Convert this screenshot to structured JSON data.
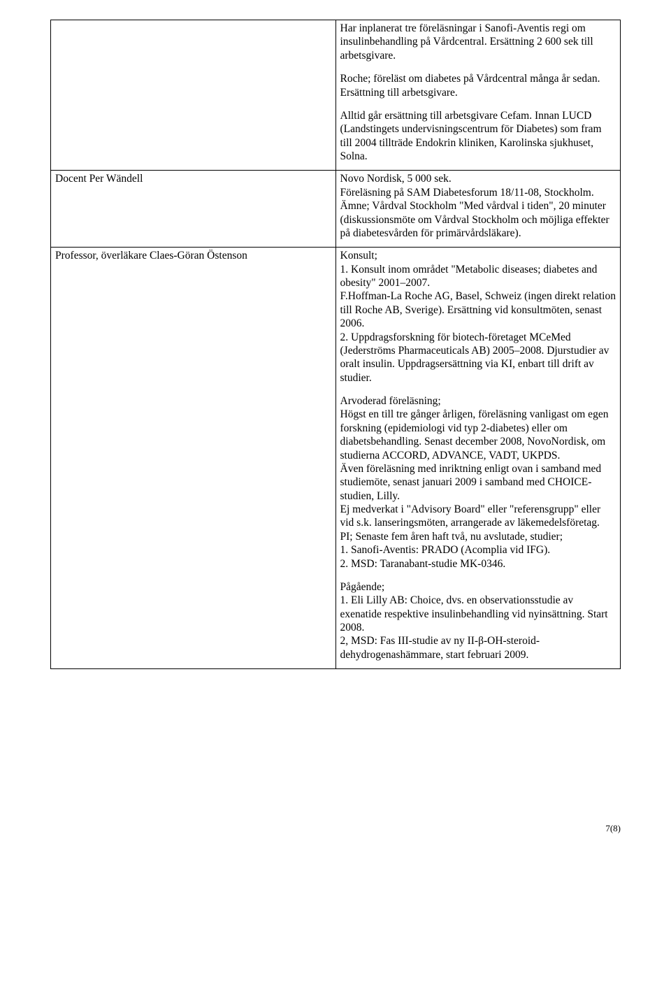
{
  "rows": [
    {
      "left": "",
      "right": [
        "Har inplanerat tre föreläsningar i Sanofi-Aventis regi om insulinbehandling på Vårdcentral. Ersättning 2 600 sek till arbetsgivare.",
        "Roche; föreläst om diabetes på Vårdcentral många år sedan. Ersättning till arbetsgivare.",
        "Alltid går ersättning till arbetsgivare Cefam. Innan LUCD (Landstingets undervisningscentrum för Diabetes) som fram till 2004 tillträde Endokrin kliniken, Karolinska sjukhuset, Solna."
      ]
    },
    {
      "left": "Docent Per Wändell",
      "right": [
        "Novo Nordisk, 5 000 sek.\nFöreläsning på SAM Diabetesforum 18/11-08, Stockholm. Ämne; Vårdval Stockholm \"Med vårdval i tiden\", 20 minuter (diskussionsmöte om Vårdval Stockholm och möjliga effekter på diabetesvården för primärvårdsläkare)."
      ]
    },
    {
      "left": "Professor, överläkare Claes-Göran Östenson",
      "right": [
        "Konsult;\n1. Konsult inom området \"Metabolic diseases; diabetes and obesity\" 2001–2007.\nF.Hoffman-La Roche AG, Basel, Schweiz (ingen direkt relation till Roche AB, Sverige). Ersättning vid konsultmöten, senast 2006.\n2. Uppdragsforskning för biotech-företaget MCeMed (Jederströms Pharmaceuticals AB) 2005–2008. Djurstudier av oralt insulin. Uppdragsersättning via KI, enbart till drift av studier.",
        "Arvoderad föreläsning;\nHögst en till tre gånger årligen, föreläsning vanligast om egen forskning (epidemiologi vid typ 2-diabetes) eller om diabetsbehandling. Senast december 2008, NovoNordisk, om studierna ACCORD, ADVANCE, VADT, UKPDS.\nÄven föreläsning med inriktning enligt ovan i samband med studiemöte, senast januari 2009 i samband med CHOICE-studien, Lilly.\nEj medverkat i \"Advisory Board\" eller \"referensgrupp\" eller vid s.k. lanseringsmöten, arrangerade av läkemedelsföretag.\nPI; Senaste fem åren haft två, nu avslutade, studier;\n1. Sanofi-Aventis: PRADO (Acomplia vid IFG).\n2. MSD: Taranabant-studie MK-0346.",
        "Pågående;\n1. Eli Lilly AB: Choice, dvs. en observationsstudie av exenatide respektive insulinbehandling vid nyinsättning. Start 2008.\n2, MSD: Fas III-studie av ny II-β-OH-steroid-dehydrogenashämmare, start februari 2009."
      ]
    }
  ],
  "footer": "7(8)"
}
